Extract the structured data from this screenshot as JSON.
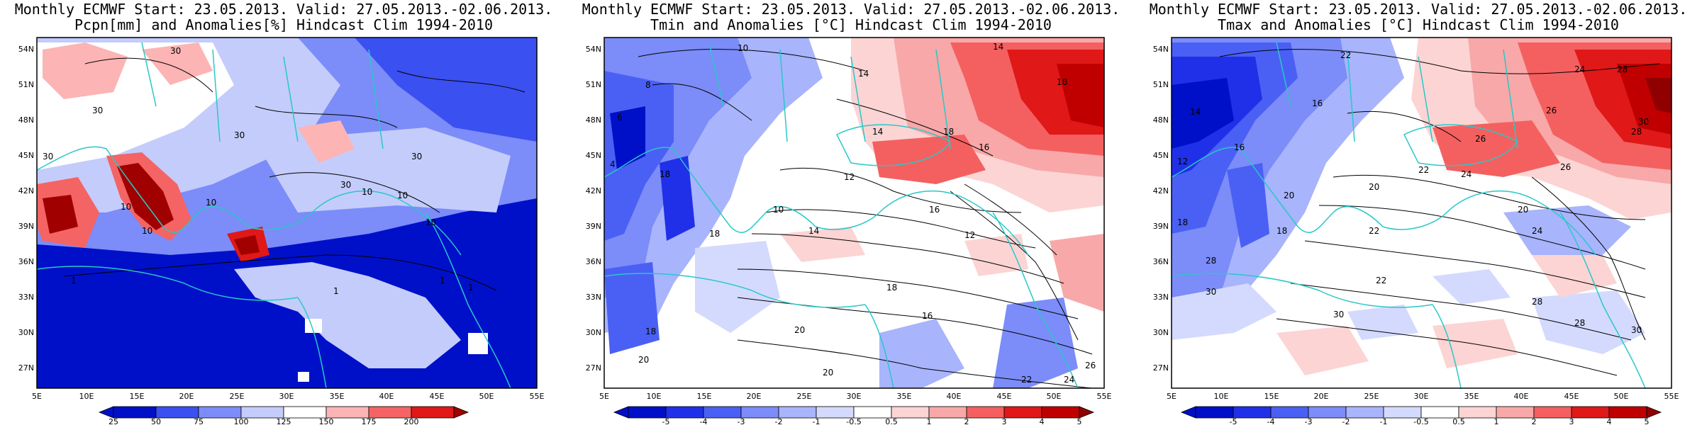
{
  "panels": [
    {
      "title1": "Monthly ECMWF Start: 23.05.2013. Valid: 27.05.2013.-02.06.2013.",
      "title2": "Pcpn[mm] and Anomalies[%] Hindcast Clim 1994-2010",
      "colorbar_labels": [
        "25",
        "50",
        "75",
        "100",
        "125",
        "150",
        "175",
        "200"
      ],
      "contour_labels": [
        "30",
        "30",
        "30",
        "30",
        "10",
        "10",
        "30",
        "10",
        "30",
        "10",
        "10",
        "1",
        "1",
        "1",
        "1",
        "10"
      ]
    },
    {
      "title1": "Monthly ECMWF Start: 23.05.2013. Valid: 27.05.2013.-02.06.2013.",
      "title2": "Tmin and Anomalies [°C] Hindcast Clim 1994-2010",
      "colorbar_labels": [
        "-5",
        "-4",
        "-3",
        "-2",
        "-1",
        "-0.5",
        "0.5",
        "1",
        "2",
        "3",
        "4",
        "5"
      ],
      "contour_labels": [
        "14",
        "10",
        "8",
        "6",
        "4",
        "18",
        "14",
        "18",
        "14",
        "18",
        "14",
        "16",
        "12",
        "10",
        "18",
        "16",
        "12",
        "20",
        "16",
        "18",
        "20",
        "20",
        "22",
        "18",
        "24",
        "26"
      ]
    },
    {
      "title1": "Monthly ECMWF Start: 23.05.2013. Valid: 27.05.2013.-02.06.2013.",
      "title2": "Tmax and Anomalies [°C] Hindcast Clim 1994-2010",
      "colorbar_labels": [
        "-5",
        "-4",
        "-3",
        "-2",
        "-1",
        "-0.5",
        "0.5",
        "1",
        "2",
        "3",
        "4",
        "5"
      ],
      "contour_labels": [
        "22",
        "24",
        "28",
        "14",
        "12",
        "16",
        "18",
        "16",
        "26",
        "30",
        "20",
        "22",
        "24",
        "26",
        "28",
        "20",
        "22",
        "24",
        "28",
        "28",
        "30",
        "30",
        "18",
        "22",
        "20",
        "26",
        "28",
        "30"
      ]
    }
  ],
  "lat_labels": [
    "54N",
    "51N",
    "48N",
    "45N",
    "42N",
    "39N",
    "36N",
    "33N",
    "30N",
    "27N"
  ],
  "lon_labels": [
    "5E",
    "10E",
    "15E",
    "20E",
    "25E",
    "30E",
    "35E",
    "40E",
    "45E",
    "50E",
    "55E"
  ],
  "colors": {
    "precip_ramp": [
      "#0010c8",
      "#3a50f0",
      "#7c8cf8",
      "#c4ccfc",
      "#ffffff",
      "#fcb4b4",
      "#f46464",
      "#e01818",
      "#a00000"
    ],
    "temp_ramp": [
      "#0010c8",
      "#2030e8",
      "#4a60f4",
      "#7c8cf8",
      "#a8b4fc",
      "#d4dafe",
      "#ffffff",
      "#fcd4d4",
      "#f8a8a8",
      "#f46060",
      "#e01818",
      "#c00000",
      "#900000"
    ],
    "coastline": "#28c8c8"
  }
}
